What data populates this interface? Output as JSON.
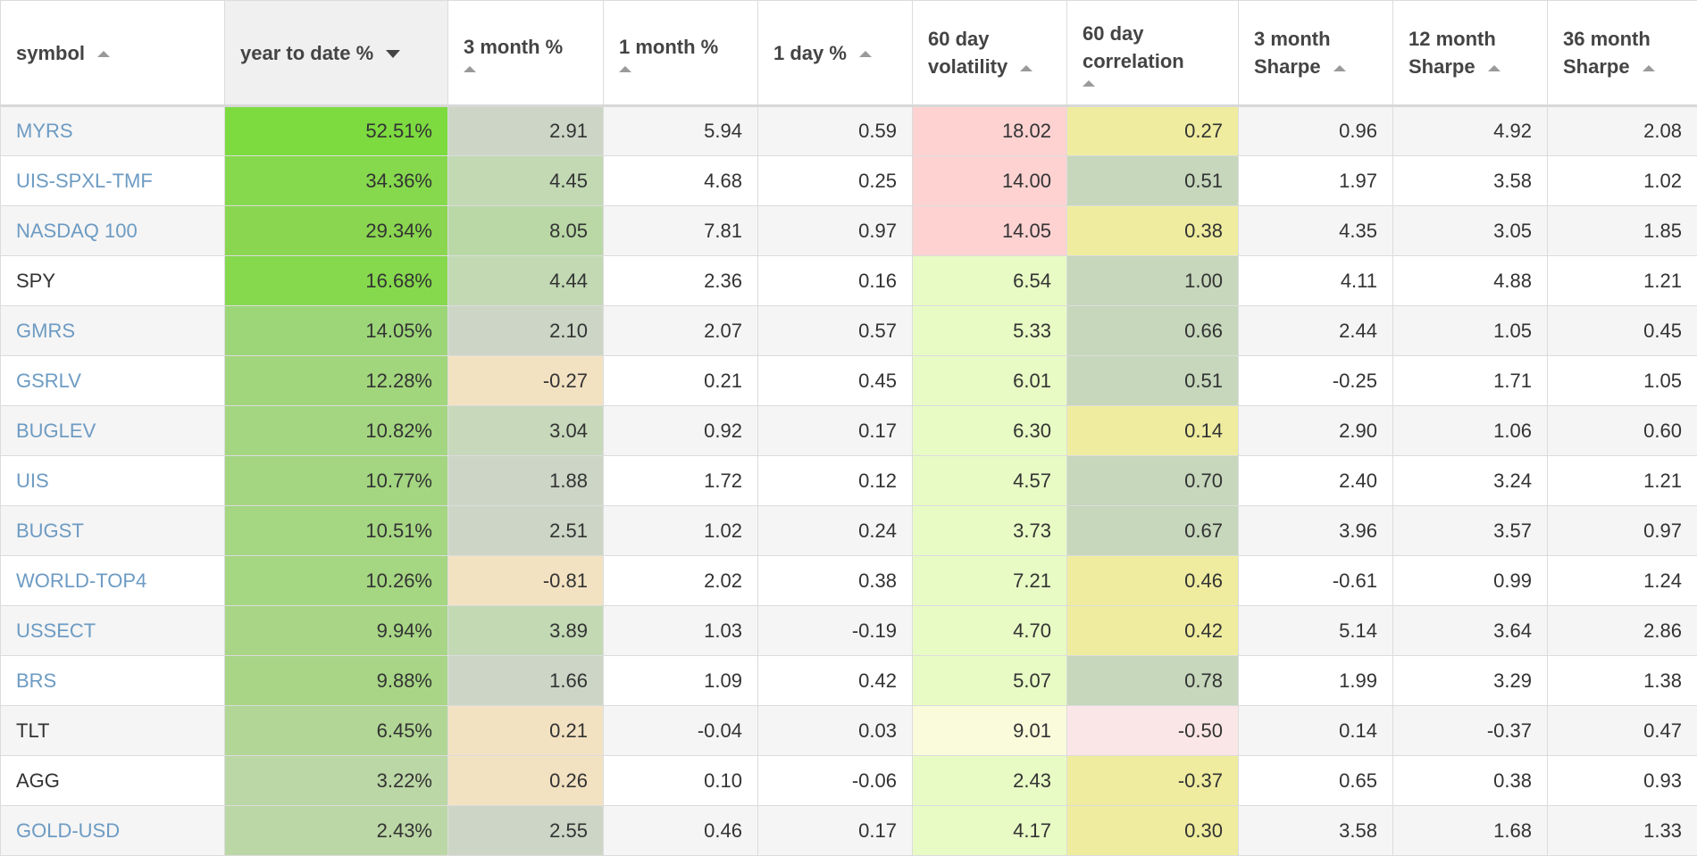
{
  "columns": [
    {
      "key": "symbol",
      "label": "symbol",
      "lines": [
        "symbol"
      ],
      "sort": "asc",
      "arrow_below": false,
      "sorted": false
    },
    {
      "key": "ytd",
      "label": "year to date %",
      "lines": [
        "year to date %"
      ],
      "sort": "desc",
      "arrow_below": false,
      "sorted": true
    },
    {
      "key": "m3",
      "label": "3 month %",
      "lines": [
        "3 month %"
      ],
      "sort": "asc",
      "arrow_below": true,
      "sorted": false
    },
    {
      "key": "m1",
      "label": "1 month %",
      "lines": [
        "1 month %"
      ],
      "sort": "asc",
      "arrow_below": true,
      "sorted": false
    },
    {
      "key": "d1",
      "label": "1 day %",
      "lines": [
        "1 day %"
      ],
      "sort": "asc",
      "arrow_below": false,
      "sorted": false
    },
    {
      "key": "vol60",
      "label": "60 day volatility",
      "lines": [
        "60 day",
        "volatility"
      ],
      "sort": "asc",
      "arrow_below": false,
      "sorted": false
    },
    {
      "key": "corr60",
      "label": "60 day correlation",
      "lines": [
        "60 day",
        "correlation"
      ],
      "sort": "asc",
      "arrow_below": true,
      "sorted": false
    },
    {
      "key": "sh3",
      "label": "3 month Sharpe",
      "lines": [
        "3 month",
        "Sharpe"
      ],
      "sort": "asc",
      "arrow_below": false,
      "sorted": false
    },
    {
      "key": "sh12",
      "label": "12 month Sharpe",
      "lines": [
        "12 month",
        "Sharpe"
      ],
      "sort": "asc",
      "arrow_below": false,
      "sorted": false
    },
    {
      "key": "sh36",
      "label": "36 month Sharpe",
      "lines": [
        "36 month",
        "Sharpe"
      ],
      "sort": "asc",
      "arrow_below": false,
      "sorted": false
    }
  ],
  "rows": [
    {
      "symbol": "MYRS",
      "link": true,
      "ytd": "52.51%",
      "m3": "2.91",
      "m1": "5.94",
      "d1": "0.59",
      "vol60": "18.02",
      "corr60": "0.27",
      "sh3": "0.96",
      "sh12": "4.92",
      "sh36": "2.08",
      "colors": {
        "ytd": "#7ddb40",
        "m3": "#cdd6c6",
        "vol60": "#ffd2d2",
        "corr60": "#efec9f"
      }
    },
    {
      "symbol": "UIS-SPXL-TMF",
      "link": true,
      "ytd": "34.36%",
      "m3": "4.45",
      "m1": "4.68",
      "d1": "0.25",
      "vol60": "14.00",
      "corr60": "0.51",
      "sh3": "1.97",
      "sh12": "3.58",
      "sh36": "1.02",
      "colors": {
        "ytd": "#86d94d",
        "m3": "#c2d9b4",
        "vol60": "#ffd2d2",
        "corr60": "#c6d7bc"
      }
    },
    {
      "symbol": "NASDAQ 100",
      "link": true,
      "ytd": "29.34%",
      "m3": "8.05",
      "m1": "7.81",
      "d1": "0.97",
      "vol60": "14.05",
      "corr60": "0.38",
      "sh3": "4.35",
      "sh12": "3.05",
      "sh36": "1.85",
      "colors": {
        "ytd": "#8ad650",
        "m3": "#b9d8a6",
        "vol60": "#ffd2d2",
        "corr60": "#efec9f"
      }
    },
    {
      "symbol": "SPY",
      "link": false,
      "ytd": "16.68%",
      "m3": "4.44",
      "m1": "2.36",
      "d1": "0.16",
      "vol60": "6.54",
      "corr60": "1.00",
      "sh3": "4.11",
      "sh12": "4.88",
      "sh36": "1.21",
      "colors": {
        "ytd": "#86d94d",
        "m3": "#c2d9b4",
        "vol60": "#e8fbc4",
        "corr60": "#c6d7bc"
      }
    },
    {
      "symbol": "GMRS",
      "link": true,
      "ytd": "14.05%",
      "m3": "2.10",
      "m1": "2.07",
      "d1": "0.57",
      "vol60": "5.33",
      "corr60": "0.66",
      "sh3": "2.44",
      "sh12": "1.05",
      "sh36": "0.45",
      "colors": {
        "ytd": "#9dd679",
        "m3": "#cdd6c6",
        "vol60": "#e8fbc4",
        "corr60": "#c6d7bc"
      }
    },
    {
      "symbol": "GSRLV",
      "link": true,
      "ytd": "12.28%",
      "m3": "-0.27",
      "m1": "0.21",
      "d1": "0.45",
      "vol60": "6.01",
      "corr60": "0.51",
      "sh3": "-0.25",
      "sh12": "1.71",
      "sh36": "1.05",
      "colors": {
        "ytd": "#a2d67d",
        "m3": "#f3e2c1",
        "vol60": "#e8fbc4",
        "corr60": "#c6d7bc"
      }
    },
    {
      "symbol": "BUGLEV",
      "link": true,
      "ytd": "10.82%",
      "m3": "3.04",
      "m1": "0.92",
      "d1": "0.17",
      "vol60": "6.30",
      "corr60": "0.14",
      "sh3": "2.90",
      "sh12": "1.06",
      "sh36": "0.60",
      "colors": {
        "ytd": "#a4d681",
        "m3": "#c7d8bb",
        "vol60": "#e8fbc4",
        "corr60": "#efec9f"
      }
    },
    {
      "symbol": "UIS",
      "link": true,
      "ytd": "10.77%",
      "m3": "1.88",
      "m1": "1.72",
      "d1": "0.12",
      "vol60": "4.57",
      "corr60": "0.70",
      "sh3": "2.40",
      "sh12": "3.24",
      "sh36": "1.21",
      "colors": {
        "ytd": "#a4d681",
        "m3": "#cdd6c6",
        "vol60": "#e8fbc4",
        "corr60": "#c6d7bc"
      }
    },
    {
      "symbol": "BUGST",
      "link": true,
      "ytd": "10.51%",
      "m3": "2.51",
      "m1": "1.02",
      "d1": "0.24",
      "vol60": "3.73",
      "corr60": "0.67",
      "sh3": "3.96",
      "sh12": "3.57",
      "sh36": "0.97",
      "colors": {
        "ytd": "#a5d682",
        "m3": "#cdd6c6",
        "vol60": "#e8fbc4",
        "corr60": "#c6d7bc"
      }
    },
    {
      "symbol": "WORLD-TOP4",
      "link": true,
      "ytd": "10.26%",
      "m3": "-0.81",
      "m1": "2.02",
      "d1": "0.38",
      "vol60": "7.21",
      "corr60": "0.46",
      "sh3": "-0.61",
      "sh12": "0.99",
      "sh36": "1.24",
      "colors": {
        "ytd": "#a5d682",
        "m3": "#f3e2c1",
        "vol60": "#e8fbc4",
        "corr60": "#efec9f"
      }
    },
    {
      "symbol": "USSECT",
      "link": true,
      "ytd": "9.94%",
      "m3": "3.89",
      "m1": "1.03",
      "d1": "-0.19",
      "vol60": "4.70",
      "corr60": "0.42",
      "sh3": "5.14",
      "sh12": "3.64",
      "sh36": "2.86",
      "colors": {
        "ytd": "#a8d686",
        "m3": "#c2d9b4",
        "vol60": "#e8fbc4",
        "corr60": "#efec9f"
      }
    },
    {
      "symbol": "BRS",
      "link": true,
      "ytd": "9.88%",
      "m3": "1.66",
      "m1": "1.09",
      "d1": "0.42",
      "vol60": "5.07",
      "corr60": "0.78",
      "sh3": "1.99",
      "sh12": "3.29",
      "sh36": "1.38",
      "colors": {
        "ytd": "#a8d686",
        "m3": "#cdd6c6",
        "vol60": "#e8fbc4",
        "corr60": "#c6d7bc"
      }
    },
    {
      "symbol": "TLT",
      "link": false,
      "ytd": "6.45%",
      "m3": "0.21",
      "m1": "-0.04",
      "d1": "0.03",
      "vol60": "9.01",
      "corr60": "-0.50",
      "sh3": "0.14",
      "sh12": "-0.37",
      "sh36": "0.47",
      "colors": {
        "ytd": "#b1d695",
        "m3": "#f3e2c1",
        "vol60": "#f9fbdb",
        "corr60": "#fbe6e7"
      }
    },
    {
      "symbol": "AGG",
      "link": false,
      "ytd": "3.22%",
      "m3": "0.26",
      "m1": "0.10",
      "d1": "-0.06",
      "vol60": "2.43",
      "corr60": "-0.37",
      "sh3": "0.65",
      "sh12": "0.38",
      "sh36": "0.93",
      "colors": {
        "ytd": "#bcd7a6",
        "m3": "#f3e2c1",
        "vol60": "#e8fbc4",
        "corr60": "#efec9f"
      }
    },
    {
      "symbol": "GOLD-USD",
      "link": true,
      "ytd": "2.43%",
      "m3": "2.55",
      "m1": "0.46",
      "d1": "0.17",
      "vol60": "4.17",
      "corr60": "0.30",
      "sh3": "3.58",
      "sh12": "1.68",
      "sh36": "1.33",
      "colors": {
        "ytd": "#bcd7a6",
        "m3": "#cdd6c6",
        "vol60": "#e8fbc4",
        "corr60": "#efec9f"
      }
    }
  ]
}
